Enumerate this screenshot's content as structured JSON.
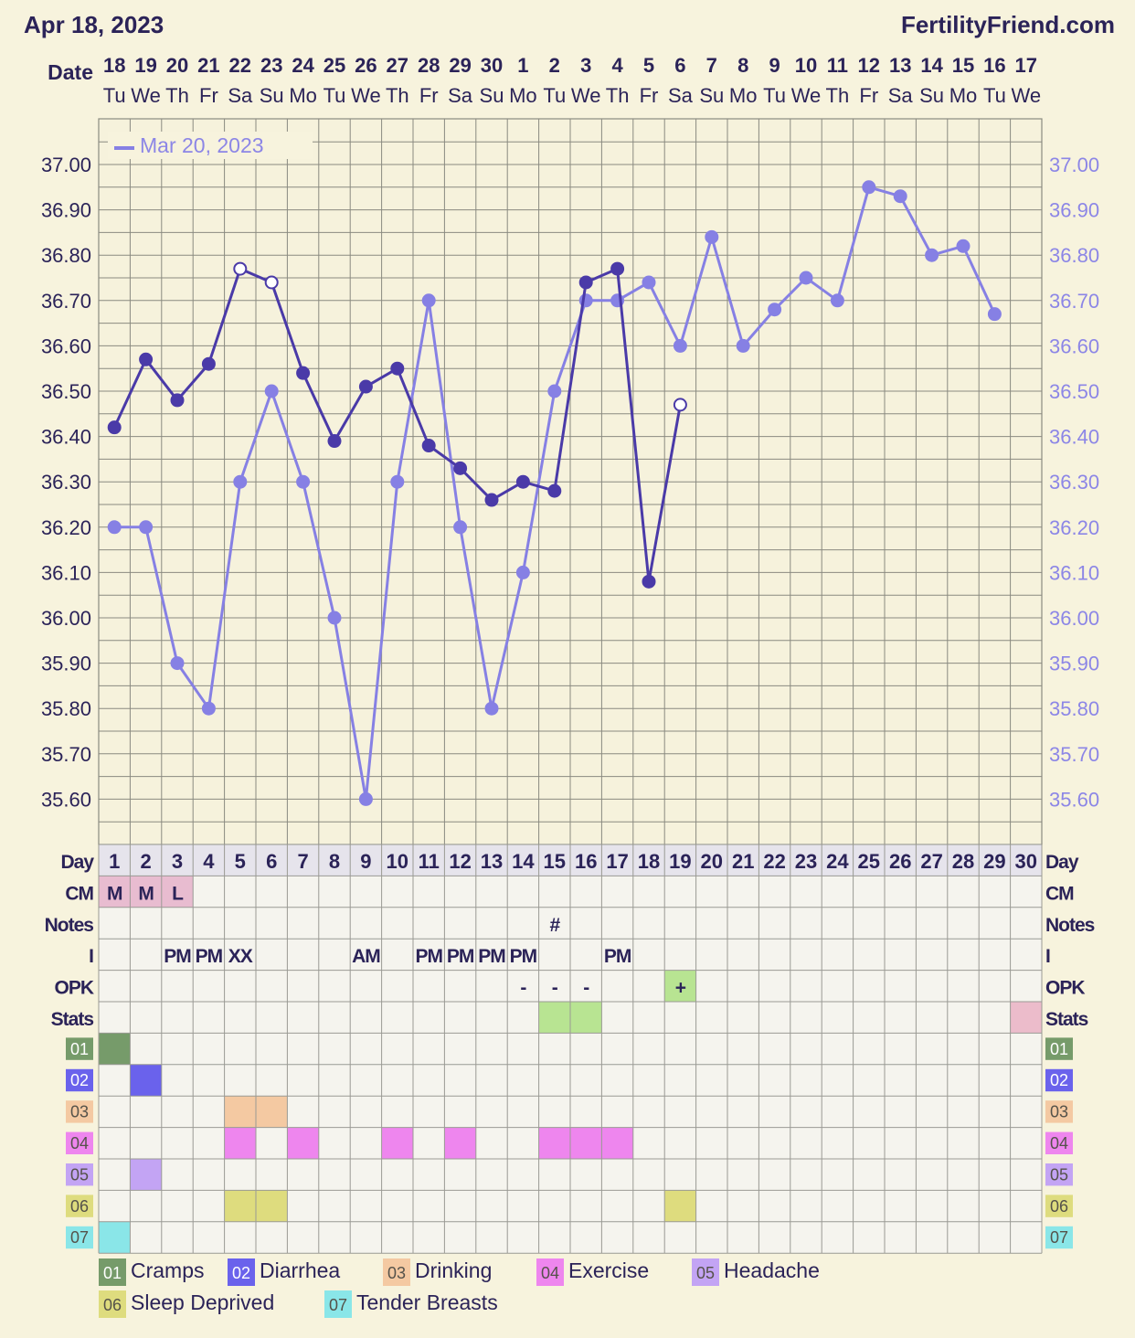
{
  "header": {
    "date": "Apr 18, 2023",
    "site": "FertilityFriend.com"
  },
  "row_labels": {
    "date": "Date",
    "day": "Day",
    "cm": "CM",
    "notes": "Notes",
    "i": "I",
    "opk": "OPK",
    "stats": "Stats"
  },
  "dates": [
    "18",
    "19",
    "20",
    "21",
    "22",
    "23",
    "24",
    "25",
    "26",
    "27",
    "28",
    "29",
    "30",
    "1",
    "2",
    "3",
    "4",
    "5",
    "6",
    "7",
    "8",
    "9",
    "10",
    "11",
    "12",
    "13",
    "14",
    "15",
    "16",
    "17"
  ],
  "weekdays": [
    "Tu",
    "We",
    "Th",
    "Fr",
    "Sa",
    "Su",
    "Mo",
    "Tu",
    "We",
    "Th",
    "Fr",
    "Sa",
    "Su",
    "Mo",
    "Tu",
    "We",
    "Th",
    "Fr",
    "Sa",
    "Su",
    "Mo",
    "Tu",
    "We",
    "Th",
    "Fr",
    "Sa",
    "Su",
    "Mo",
    "Tu",
    "We"
  ],
  "cycle_days": [
    "1",
    "2",
    "3",
    "4",
    "5",
    "6",
    "7",
    "8",
    "9",
    "10",
    "11",
    "12",
    "13",
    "14",
    "15",
    "16",
    "17",
    "18",
    "19",
    "20",
    "21",
    "22",
    "23",
    "24",
    "25",
    "26",
    "27",
    "28",
    "29",
    "30"
  ],
  "chart_data": {
    "type": "line",
    "ylim": [
      35.5,
      37.1
    ],
    "y_ticks": [
      "37.00",
      "36.90",
      "36.80",
      "36.70",
      "36.60",
      "36.50",
      "36.40",
      "36.30",
      "36.20",
      "36.10",
      "36.00",
      "35.90",
      "35.80",
      "35.70",
      "35.60"
    ],
    "grid": true,
    "legend": {
      "label": "Mar 20, 2023",
      "placement": "top-left"
    },
    "x": [
      "1",
      "2",
      "3",
      "4",
      "5",
      "6",
      "7",
      "8",
      "9",
      "10",
      "11",
      "12",
      "13",
      "14",
      "15",
      "16",
      "17",
      "18",
      "19",
      "20",
      "21",
      "22",
      "23",
      "24",
      "25",
      "26",
      "27",
      "28",
      "29",
      "30"
    ],
    "series": [
      {
        "name": "",
        "color": "#4a3aa8",
        "values": [
          36.42,
          36.57,
          36.48,
          36.56,
          36.77,
          36.74,
          36.54,
          36.39,
          36.51,
          36.55,
          36.38,
          36.33,
          36.26,
          36.3,
          36.28,
          36.74,
          36.77,
          36.08,
          36.47,
          null,
          null,
          null,
          null,
          null,
          null,
          null,
          null,
          null,
          null,
          null
        ],
        "open_points": [
          5,
          6,
          19
        ]
      },
      {
        "name": "Mar 20, 2023",
        "color": "#8680e4",
        "values": [
          36.2,
          36.2,
          35.9,
          35.8,
          36.3,
          36.5,
          36.3,
          36.0,
          35.6,
          36.3,
          36.7,
          36.2,
          35.8,
          36.1,
          36.5,
          36.7,
          36.7,
          36.74,
          36.6,
          36.84,
          36.6,
          36.68,
          36.75,
          36.7,
          36.95,
          36.93,
          36.8,
          36.82,
          36.67,
          null
        ],
        "open_points": []
      }
    ]
  },
  "cm": {
    "values": {
      "1": "M",
      "2": "M",
      "3": "L"
    },
    "color": "#e8bcd0"
  },
  "notes": {
    "15": "#"
  },
  "intercourse": {
    "3": "PM",
    "4": "PM",
    "5": "XX",
    "9": "AM",
    "11": "PM",
    "12": "PM",
    "13": "PM",
    "14": "PM",
    "17": "PM"
  },
  "opk": {
    "values": {
      "14": "-",
      "15": "-",
      "16": "-",
      "19": "+"
    },
    "positive_color": "#b8e492"
  },
  "stats": {
    "cells": {
      "15": "#b8e492",
      "16": "#b8e492",
      "30": "#ecbccb"
    }
  },
  "symptoms": [
    {
      "code": "01",
      "label": "Cramps",
      "color": "#769b6a",
      "days": [
        1
      ]
    },
    {
      "code": "02",
      "label": "Diarrhea",
      "color": "#6a62ec",
      "days": [
        2
      ]
    },
    {
      "code": "03",
      "label": "Drinking",
      "color": "#f4c9a2",
      "days": [
        5,
        6
      ]
    },
    {
      "code": "04",
      "label": "Exercise",
      "color": "#ee86ee",
      "days": [
        5,
        7,
        10,
        12,
        15,
        16,
        17
      ]
    },
    {
      "code": "05",
      "label": "Headache",
      "color": "#c3a4f4",
      "days": [
        2
      ]
    },
    {
      "code": "06",
      "label": "Sleep Deprived",
      "color": "#dedc7e",
      "days": [
        5,
        6,
        19
      ]
    },
    {
      "code": "07",
      "label": "Tender Breasts",
      "color": "#8ae6e8",
      "days": [
        1
      ]
    }
  ]
}
